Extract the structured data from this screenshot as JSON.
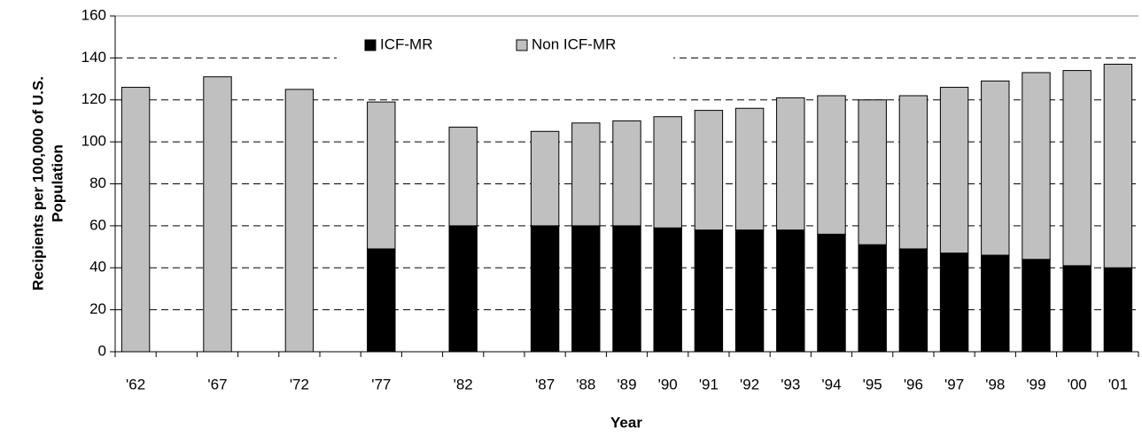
{
  "chart_data": {
    "type": "stacked_bar",
    "xlabel": "Year",
    "ylabel": [
      "Recipients per 100,000 of U.S.",
      "Population"
    ],
    "categories": [
      "'62",
      null,
      "'67",
      null,
      "'72",
      null,
      "'77",
      null,
      "'82",
      null,
      "'87",
      "'88",
      "'89",
      "'90",
      "'91",
      "'92",
      "'93",
      "'94",
      "'95",
      "'96",
      "'97",
      "'98",
      "'99",
      "'00",
      "'01"
    ],
    "series": [
      {
        "name": "ICF-MR",
        "color": "#000000",
        "values": [
          0,
          null,
          0,
          null,
          0,
          null,
          49,
          null,
          60,
          null,
          60,
          60,
          60,
          59,
          58,
          58,
          58,
          56,
          51,
          49,
          47,
          46,
          44,
          41,
          40
        ]
      },
      {
        "name": "Non ICF-MR",
        "color": "#c0c0c0",
        "values": [
          126,
          null,
          131,
          null,
          125,
          null,
          70,
          null,
          47,
          null,
          45,
          49,
          50,
          53,
          57,
          58,
          63,
          66,
          69,
          73,
          79,
          83,
          89,
          93,
          97
        ]
      }
    ],
    "ylim": [
      0,
      160
    ],
    "yticks": [
      0,
      20,
      40,
      60,
      80,
      100,
      120,
      140,
      160
    ],
    "grid": true
  }
}
